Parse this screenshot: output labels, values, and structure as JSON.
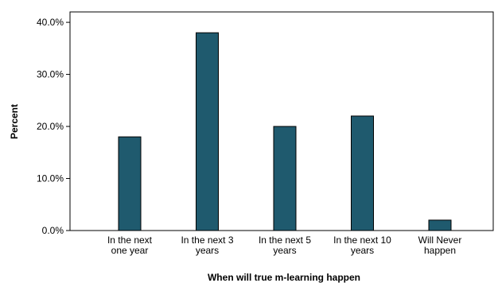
{
  "chart_data": {
    "type": "bar",
    "title": "",
    "xlabel": "When will true m-learning happen",
    "ylabel": "Percent",
    "categories": [
      [
        "In the next",
        "one year"
      ],
      [
        "In the next 3",
        "years"
      ],
      [
        "In the next 5",
        "years"
      ],
      [
        "In the next 10",
        "years"
      ],
      [
        "Will Never",
        "happen"
      ]
    ],
    "values": [
      18.0,
      38.0,
      20.0,
      22.0,
      2.0
    ],
    "ylim": [
      0,
      42
    ],
    "yticks": [
      0,
      10,
      20,
      30,
      40
    ],
    "ytick_labels": [
      "0.0%",
      "10.0%",
      "20.0%",
      "30.0%",
      "40.0%"
    ],
    "grid": false,
    "legend": "none",
    "bar_color": "#1f5a6e",
    "bar_edge_color": "#000000"
  }
}
